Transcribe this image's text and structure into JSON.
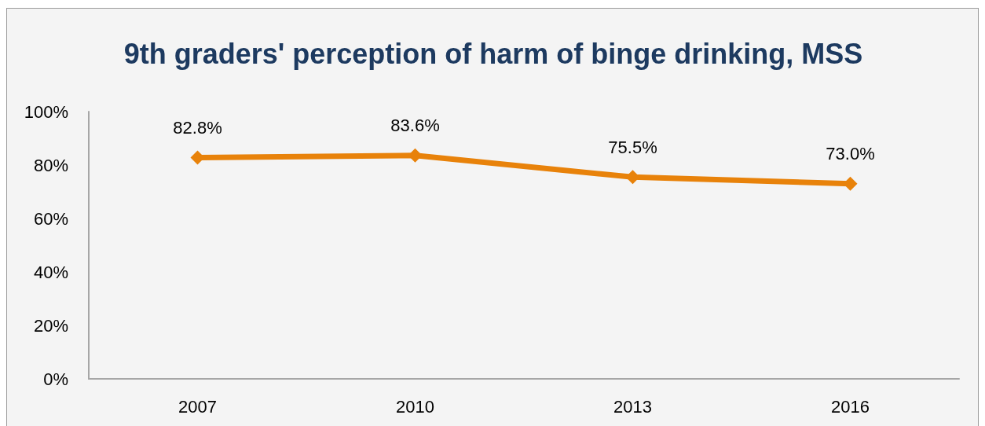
{
  "chart_data": {
    "type": "line",
    "title": "9th graders' perception of harm of binge drinking, MSS",
    "categories": [
      "2007",
      "2010",
      "2013",
      "2016"
    ],
    "values": [
      82.8,
      83.6,
      75.5,
      73.0
    ],
    "color": "#e8820a",
    "value_labels": [
      "82.8%",
      "83.6%",
      "75.5%",
      "73.0%"
    ],
    "ylim": [
      0,
      100
    ],
    "yticks": [
      {
        "value": 0,
        "label": "0%"
      },
      {
        "value": 20,
        "label": "20%"
      },
      {
        "value": 40,
        "label": "40%"
      },
      {
        "value": 60,
        "label": "60%"
      },
      {
        "value": 80,
        "label": "80%"
      },
      {
        "value": 100,
        "label": "100%"
      }
    ],
    "grid": false,
    "marker": "diamond",
    "line_style": "solid"
  }
}
